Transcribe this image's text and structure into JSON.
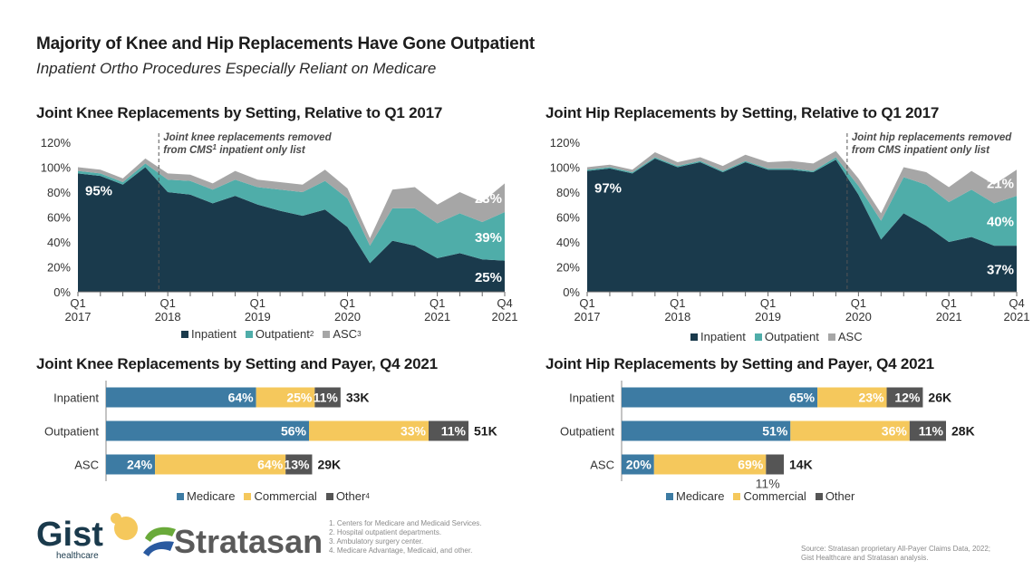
{
  "header": {
    "title": "Majority of Knee and Hip Replacements Have Gone Outpatient",
    "subtitle": "Inpatient Ortho Procedures Especially Reliant on Medicare"
  },
  "colors": {
    "inpatient": "#1a3a4c",
    "outpatient": "#4fada9",
    "asc": "#a6a6a6",
    "medicare": "#3d7ba3",
    "commercial": "#f5c85c",
    "other": "#555555"
  },
  "chart_data": [
    {
      "id": "knee_area",
      "type": "area",
      "stacked": true,
      "title": "Joint Knee Replacements by Setting, Relative to Q1 2017",
      "xlabel": "",
      "ylabel": "",
      "ylim": [
        0,
        120
      ],
      "yticks": [
        "0%",
        "20%",
        "40%",
        "60%",
        "80%",
        "100%",
        "120%"
      ],
      "x": [
        "Q1 2017",
        "Q2 2017",
        "Q3 2017",
        "Q4 2017",
        "Q1 2018",
        "Q2 2018",
        "Q3 2018",
        "Q4 2018",
        "Q1 2019",
        "Q2 2019",
        "Q3 2019",
        "Q4 2019",
        "Q1 2020",
        "Q2 2020",
        "Q3 2020",
        "Q4 2020",
        "Q1 2021",
        "Q2 2021",
        "Q3 2021",
        "Q4 2021"
      ],
      "xtick_labels": [
        {
          "index": 0,
          "line1": "Q1",
          "line2": "2017"
        },
        {
          "index": 4,
          "line1": "Q1",
          "line2": "2018"
        },
        {
          "index": 8,
          "line1": "Q1",
          "line2": "2019"
        },
        {
          "index": 12,
          "line1": "Q1",
          "line2": "2020"
        },
        {
          "index": 16,
          "line1": "Q1",
          "line2": "2021"
        },
        {
          "index": 19,
          "line1": "Q4",
          "line2": "2021"
        }
      ],
      "series": [
        {
          "name": "Inpatient",
          "color_key": "inpatient",
          "values": [
            95,
            93,
            86,
            100,
            80,
            78,
            71,
            77,
            70,
            65,
            61,
            66,
            52,
            23,
            41,
            37,
            27,
            31,
            26,
            25
          ]
        },
        {
          "name": "Outpatient",
          "color_key": "outpatient",
          "values": [
            2,
            2,
            2,
            3,
            10,
            11,
            11,
            13,
            14,
            17,
            19,
            23,
            23,
            14,
            26,
            30,
            28,
            32,
            30,
            39
          ]
        },
        {
          "name": "ASC",
          "color_key": "asc",
          "values": [
            3,
            3,
            3,
            4,
            5,
            5,
            5,
            7,
            6,
            6,
            6,
            9,
            8,
            6,
            15,
            17,
            15,
            17,
            16,
            23
          ]
        }
      ],
      "legend": [
        {
          "label": "Inpatient",
          "sup": "",
          "color_key": "inpatient"
        },
        {
          "label": "Outpatient",
          "sup": "2",
          "color_key": "outpatient"
        },
        {
          "label": "ASC",
          "sup": "3",
          "color_key": "asc"
        }
      ],
      "legend_position": "bottom",
      "data_labels": [
        {
          "series": "Inpatient",
          "index": 0,
          "text": "95%"
        },
        {
          "series": "Inpatient",
          "index": 19,
          "text": "25%"
        },
        {
          "series": "Outpatient",
          "index": 19,
          "text": "39%"
        },
        {
          "series": "ASC",
          "index": 19,
          "text": "23%"
        }
      ],
      "annotation": {
        "at_x": 3.6,
        "line1": "Joint knee replacements removed",
        "line2_pre": "from CMS",
        "line2_sup": "1",
        "line2_post": " inpatient only list"
      }
    },
    {
      "id": "hip_area",
      "type": "area",
      "stacked": true,
      "title": "Joint Hip Replacements by Setting, Relative to Q1 2017",
      "xlabel": "",
      "ylabel": "",
      "ylim": [
        0,
        120
      ],
      "yticks": [
        "0%",
        "20%",
        "40%",
        "60%",
        "80%",
        "100%",
        "120%"
      ],
      "x": [
        "Q1 2017",
        "Q2 2017",
        "Q3 2017",
        "Q4 2017",
        "Q1 2018",
        "Q2 2018",
        "Q3 2018",
        "Q4 2018",
        "Q1 2019",
        "Q2 2019",
        "Q3 2019",
        "Q4 2019",
        "Q1 2020",
        "Q2 2020",
        "Q3 2020",
        "Q4 2020",
        "Q1 2021",
        "Q2 2021",
        "Q3 2021",
        "Q4 2021"
      ],
      "xtick_labels": [
        {
          "index": 0,
          "line1": "Q1",
          "line2": "2017"
        },
        {
          "index": 4,
          "line1": "Q1",
          "line2": "2018"
        },
        {
          "index": 8,
          "line1": "Q1",
          "line2": "2019"
        },
        {
          "index": 12,
          "line1": "Q1",
          "line2": "2020"
        },
        {
          "index": 16,
          "line1": "Q1",
          "line2": "2021"
        },
        {
          "index": 19,
          "line1": "Q4",
          "line2": "2021"
        }
      ],
      "series": [
        {
          "name": "Inpatient",
          "color_key": "inpatient",
          "values": [
            97,
            99,
            95,
            107,
            100,
            104,
            96,
            104,
            98,
            98,
            96,
            106,
            78,
            42,
            63,
            53,
            40,
            44,
            37,
            37
          ]
        },
        {
          "name": "Outpatient",
          "color_key": "outpatient",
          "values": [
            1,
            1,
            1,
            1,
            1,
            1,
            1,
            1,
            1,
            1,
            1,
            2,
            7,
            15,
            29,
            33,
            32,
            38,
            34,
            40
          ]
        },
        {
          "name": "ASC",
          "color_key": "asc",
          "values": [
            2,
            2,
            2,
            4,
            3,
            3,
            4,
            5,
            5,
            6,
            6,
            5,
            6,
            6,
            8,
            10,
            12,
            15,
            15,
            21
          ]
        }
      ],
      "legend": [
        {
          "label": "Inpatient",
          "sup": "",
          "color_key": "inpatient"
        },
        {
          "label": "Outpatient",
          "sup": "",
          "color_key": "outpatient"
        },
        {
          "label": "ASC",
          "sup": "",
          "color_key": "asc"
        }
      ],
      "legend_position": "bottom",
      "data_labels": [
        {
          "series": "Inpatient",
          "index": 0,
          "text": "97%"
        },
        {
          "series": "Inpatient",
          "index": 19,
          "text": "37%"
        },
        {
          "series": "Outpatient",
          "index": 19,
          "text": "40%"
        },
        {
          "series": "ASC",
          "index": 19,
          "text": "21%"
        }
      ],
      "annotation": {
        "at_x": 11.5,
        "line1": "Joint hip replacements removed",
        "line2_pre": "from CMS",
        "line2_sup": "",
        "line2_post": " inpatient only list"
      }
    },
    {
      "id": "knee_bar",
      "type": "bar",
      "orientation": "horizontal",
      "stacked": true,
      "title": "Joint Knee Replacements by Setting and Payer, Q4 2021",
      "categories": [
        "Inpatient",
        "Outpatient",
        "ASC"
      ],
      "totals": [
        33,
        51,
        29
      ],
      "total_labels": [
        "33K",
        "51K",
        "29K"
      ],
      "series": [
        {
          "name": "Medicare",
          "color_key": "medicare",
          "values": [
            64,
            56,
            24
          ],
          "labels": [
            "64%",
            "56%",
            "24%"
          ]
        },
        {
          "name": "Commercial",
          "color_key": "commercial",
          "values": [
            25,
            33,
            64
          ],
          "labels": [
            "25%",
            "33%",
            "64%"
          ]
        },
        {
          "name": "Other",
          "color_key": "other",
          "values": [
            11,
            11,
            13
          ],
          "labels": [
            "11%",
            "11%",
            "13%"
          ]
        }
      ],
      "legend": [
        {
          "label": "Medicare",
          "sup": "",
          "color_key": "medicare"
        },
        {
          "label": "Commercial",
          "sup": "",
          "color_key": "commercial"
        },
        {
          "label": "Other",
          "sup": "4",
          "color_key": "other"
        }
      ],
      "legend_position": "bottom"
    },
    {
      "id": "hip_bar",
      "type": "bar",
      "orientation": "horizontal",
      "stacked": true,
      "title": "Joint Hip Replacements by Setting and Payer, Q4 2021",
      "categories": [
        "Inpatient",
        "Outpatient",
        "ASC"
      ],
      "totals": [
        26,
        28,
        14
      ],
      "total_labels": [
        "26K",
        "28K",
        "14K"
      ],
      "series": [
        {
          "name": "Medicare",
          "color_key": "medicare",
          "values": [
            65,
            51,
            20
          ],
          "labels": [
            "65%",
            "51%",
            "20%"
          ]
        },
        {
          "name": "Commercial",
          "color_key": "commercial",
          "values": [
            23,
            36,
            69
          ],
          "labels": [
            "23%",
            "36%",
            "69%"
          ]
        },
        {
          "name": "Other",
          "color_key": "other",
          "values": [
            12,
            11,
            11
          ],
          "labels": [
            "12%",
            "11%",
            "11%"
          ]
        }
      ],
      "legend": [
        {
          "label": "Medicare",
          "sup": "",
          "color_key": "medicare"
        },
        {
          "label": "Commercial",
          "sup": "",
          "color_key": "commercial"
        },
        {
          "label": "Other",
          "sup": "",
          "color_key": "other"
        }
      ],
      "legend_position": "bottom"
    }
  ],
  "logos": {
    "gist_word": "Gist",
    "gist_sub": "healthcare",
    "stratasan_word": "Stratasan"
  },
  "footnotes": [
    "1. Centers for Medicare and Medicaid Services.",
    "2. Hospital outpatient departments.",
    "3. Ambulatory surgery center.",
    "4. Medicare Advantage, Medicaid, and other."
  ],
  "source": [
    "Source: Stratasan proprietary All-Payer Claims Data, 2022;",
    "Gist Healthcare and Stratasan analysis."
  ]
}
